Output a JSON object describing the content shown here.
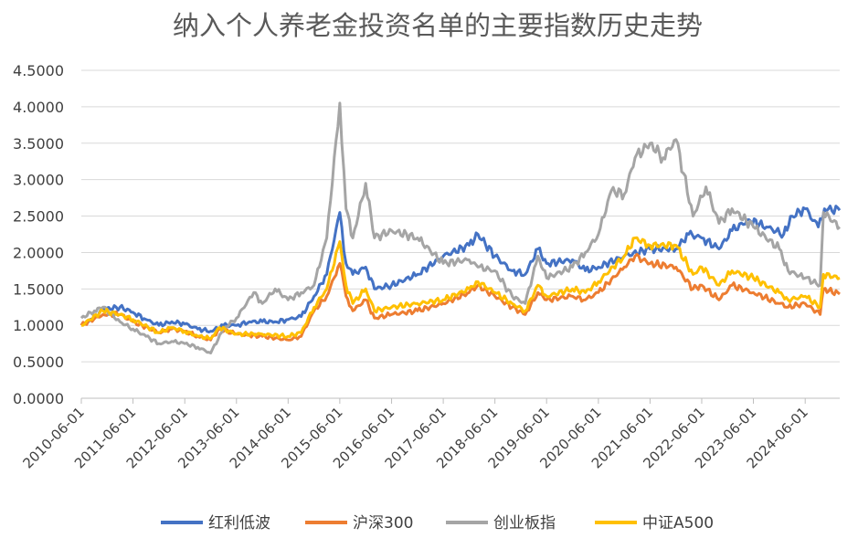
{
  "chart_data": {
    "type": "line",
    "title": "纳入个人养老金投资名单的主要指数历史走势",
    "xlabel": "",
    "ylabel": "",
    "ylim": [
      0,
      4.5
    ],
    "y_tick_labels": [
      "0.0000",
      "0.5000",
      "1.0000",
      "1.5000",
      "2.0000",
      "2.5000",
      "3.0000",
      "3.5000",
      "4.0000",
      "4.5000"
    ],
    "x_tick_labels": [
      "2010-06-01",
      "2011-06-01",
      "2012-06-01",
      "2013-06-01",
      "2014-06-01",
      "2015-06-01",
      "2016-06-01",
      "2017-06-01",
      "2018-06-01",
      "2019-06-01",
      "2020-06-01",
      "2021-06-01",
      "2022-06-01",
      "2023-06-01",
      "2024-06-01"
    ],
    "x_range": [
      "2010-06-01",
      "2025-01-31"
    ],
    "grid": "horizontal",
    "legend_position": "bottom",
    "series": [
      {
        "name": "红利低波",
        "color": "#4472C4",
        "points": [
          [
            "2010-06-01",
            1.0
          ],
          [
            "2010-09-01",
            1.1
          ],
          [
            "2010-11-01",
            1.22
          ],
          [
            "2011-03-01",
            1.25
          ],
          [
            "2011-06-01",
            1.18
          ],
          [
            "2011-09-01",
            1.08
          ],
          [
            "2011-12-01",
            1.0
          ],
          [
            "2012-03-01",
            1.05
          ],
          [
            "2012-06-01",
            1.02
          ],
          [
            "2012-09-01",
            0.95
          ],
          [
            "2012-12-01",
            0.92
          ],
          [
            "2013-03-01",
            1.0
          ],
          [
            "2013-06-01",
            1.0
          ],
          [
            "2013-09-01",
            1.05
          ],
          [
            "2013-12-01",
            1.05
          ],
          [
            "2014-03-01",
            1.05
          ],
          [
            "2014-06-01",
            1.08
          ],
          [
            "2014-09-01",
            1.12
          ],
          [
            "2014-12-01",
            1.4
          ],
          [
            "2015-03-01",
            1.7
          ],
          [
            "2015-06-01",
            2.55
          ],
          [
            "2015-07-15",
            1.85
          ],
          [
            "2015-09-01",
            1.7
          ],
          [
            "2015-12-01",
            1.8
          ],
          [
            "2016-02-01",
            1.5
          ],
          [
            "2016-06-01",
            1.55
          ],
          [
            "2016-12-01",
            1.7
          ],
          [
            "2017-06-01",
            1.95
          ],
          [
            "2017-12-01",
            2.1
          ],
          [
            "2018-02-01",
            2.25
          ],
          [
            "2018-06-01",
            1.95
          ],
          [
            "2018-10-01",
            1.75
          ],
          [
            "2019-01-01",
            1.7
          ],
          [
            "2019-04-01",
            2.05
          ],
          [
            "2019-06-01",
            1.85
          ],
          [
            "2019-12-01",
            1.9
          ],
          [
            "2020-03-01",
            1.75
          ],
          [
            "2020-06-01",
            1.8
          ],
          [
            "2020-12-01",
            1.95
          ],
          [
            "2021-06-01",
            2.05
          ],
          [
            "2021-12-01",
            2.05
          ],
          [
            "2022-03-01",
            2.25
          ],
          [
            "2022-06-01",
            2.2
          ],
          [
            "2022-10-01",
            2.05
          ],
          [
            "2023-01-01",
            2.3
          ],
          [
            "2023-05-01",
            2.45
          ],
          [
            "2023-09-01",
            2.35
          ],
          [
            "2024-01-01",
            2.25
          ],
          [
            "2024-03-01",
            2.5
          ],
          [
            "2024-06-01",
            2.6
          ],
          [
            "2024-09-01",
            2.35
          ],
          [
            "2024-10-15",
            2.6
          ],
          [
            "2025-01-31",
            2.58
          ]
        ]
      },
      {
        "name": "沪深300",
        "color": "#ED7D31",
        "points": [
          [
            "2010-06-01",
            1.0
          ],
          [
            "2010-11-01",
            1.15
          ],
          [
            "2011-03-01",
            1.15
          ],
          [
            "2011-06-01",
            1.05
          ],
          [
            "2011-12-01",
            0.9
          ],
          [
            "2012-03-01",
            0.95
          ],
          [
            "2012-06-01",
            0.92
          ],
          [
            "2012-09-01",
            0.85
          ],
          [
            "2012-12-01",
            0.8
          ],
          [
            "2013-02-01",
            0.95
          ],
          [
            "2013-06-01",
            0.88
          ],
          [
            "2013-12-01",
            0.85
          ],
          [
            "2014-06-01",
            0.8
          ],
          [
            "2014-09-01",
            0.85
          ],
          [
            "2014-12-01",
            1.2
          ],
          [
            "2015-03-01",
            1.4
          ],
          [
            "2015-06-01",
            1.85
          ],
          [
            "2015-07-15",
            1.4
          ],
          [
            "2015-09-01",
            1.2
          ],
          [
            "2015-12-01",
            1.35
          ],
          [
            "2016-02-01",
            1.1
          ],
          [
            "2016-06-01",
            1.15
          ],
          [
            "2016-12-01",
            1.2
          ],
          [
            "2017-06-01",
            1.3
          ],
          [
            "2017-12-01",
            1.45
          ],
          [
            "2018-02-01",
            1.55
          ],
          [
            "2018-06-01",
            1.4
          ],
          [
            "2018-10-01",
            1.25
          ],
          [
            "2019-01-01",
            1.15
          ],
          [
            "2019-04-01",
            1.45
          ],
          [
            "2019-06-01",
            1.35
          ],
          [
            "2019-12-01",
            1.4
          ],
          [
            "2020-03-01",
            1.35
          ],
          [
            "2020-06-01",
            1.45
          ],
          [
            "2020-12-01",
            1.8
          ],
          [
            "2021-02-15",
            1.95
          ],
          [
            "2021-06-01",
            1.85
          ],
          [
            "2021-12-01",
            1.8
          ],
          [
            "2022-04-01",
            1.5
          ],
          [
            "2022-06-01",
            1.55
          ],
          [
            "2022-10-01",
            1.35
          ],
          [
            "2023-01-01",
            1.55
          ],
          [
            "2023-06-01",
            1.45
          ],
          [
            "2023-12-01",
            1.3
          ],
          [
            "2024-02-01",
            1.25
          ],
          [
            "2024-06-01",
            1.3
          ],
          [
            "2024-09-15",
            1.15
          ],
          [
            "2024-10-08",
            1.5
          ],
          [
            "2025-01-31",
            1.43
          ]
        ]
      },
      {
        "name": "创业板指",
        "color": "#A5A5A5",
        "points": [
          [
            "2010-06-01",
            1.1
          ],
          [
            "2010-09-01",
            1.2
          ],
          [
            "2010-11-01",
            1.25
          ],
          [
            "2011-03-01",
            1.05
          ],
          [
            "2011-06-01",
            0.95
          ],
          [
            "2011-09-01",
            0.85
          ],
          [
            "2011-12-01",
            0.75
          ],
          [
            "2012-03-01",
            0.78
          ],
          [
            "2012-06-01",
            0.75
          ],
          [
            "2012-09-01",
            0.7
          ],
          [
            "2012-12-01",
            0.62
          ],
          [
            "2013-03-01",
            0.95
          ],
          [
            "2013-06-01",
            1.1
          ],
          [
            "2013-10-01",
            1.45
          ],
          [
            "2013-12-01",
            1.3
          ],
          [
            "2014-03-01",
            1.5
          ],
          [
            "2014-06-01",
            1.35
          ],
          [
            "2014-09-01",
            1.45
          ],
          [
            "2014-12-01",
            1.55
          ],
          [
            "2015-03-01",
            2.2
          ],
          [
            "2015-06-01",
            4.05
          ],
          [
            "2015-07-15",
            2.6
          ],
          [
            "2015-09-01",
            2.2
          ],
          [
            "2015-12-01",
            2.95
          ],
          [
            "2016-02-01",
            2.2
          ],
          [
            "2016-06-01",
            2.3
          ],
          [
            "2016-12-01",
            2.2
          ],
          [
            "2017-06-01",
            1.85
          ],
          [
            "2017-12-01",
            1.9
          ],
          [
            "2018-02-01",
            1.8
          ],
          [
            "2018-06-01",
            1.75
          ],
          [
            "2018-10-01",
            1.4
          ],
          [
            "2019-01-01",
            1.3
          ],
          [
            "2019-04-01",
            1.95
          ],
          [
            "2019-06-01",
            1.65
          ],
          [
            "2019-12-01",
            1.8
          ],
          [
            "2020-03-01",
            2.0
          ],
          [
            "2020-06-01",
            2.25
          ],
          [
            "2020-09-01",
            2.85
          ],
          [
            "2020-12-01",
            2.8
          ],
          [
            "2021-02-15",
            3.3
          ],
          [
            "2021-06-01",
            3.5
          ],
          [
            "2021-09-01",
            3.3
          ],
          [
            "2021-12-01",
            3.55
          ],
          [
            "2022-04-01",
            2.5
          ],
          [
            "2022-07-01",
            2.9
          ],
          [
            "2022-10-01",
            2.4
          ],
          [
            "2023-01-01",
            2.6
          ],
          [
            "2023-06-01",
            2.35
          ],
          [
            "2023-12-01",
            2.05
          ],
          [
            "2024-02-01",
            1.75
          ],
          [
            "2024-06-01",
            1.65
          ],
          [
            "2024-09-15",
            1.55
          ],
          [
            "2024-10-08",
            2.55
          ],
          [
            "2025-01-31",
            2.35
          ]
        ]
      },
      {
        "name": "中证A500",
        "color": "#FFC000",
        "points": [
          [
            "2010-06-01",
            1.0
          ],
          [
            "2010-11-01",
            1.2
          ],
          [
            "2011-03-01",
            1.15
          ],
          [
            "2011-06-01",
            1.08
          ],
          [
            "2011-12-01",
            0.9
          ],
          [
            "2012-03-01",
            0.97
          ],
          [
            "2012-06-01",
            0.92
          ],
          [
            "2012-09-01",
            0.85
          ],
          [
            "2012-12-01",
            0.82
          ],
          [
            "2013-02-01",
            0.97
          ],
          [
            "2013-06-01",
            0.88
          ],
          [
            "2013-12-01",
            0.88
          ],
          [
            "2014-06-01",
            0.85
          ],
          [
            "2014-09-01",
            0.9
          ],
          [
            "2014-12-01",
            1.25
          ],
          [
            "2015-03-01",
            1.5
          ],
          [
            "2015-06-01",
            2.15
          ],
          [
            "2015-07-15",
            1.55
          ],
          [
            "2015-09-01",
            1.3
          ],
          [
            "2015-12-01",
            1.5
          ],
          [
            "2016-02-01",
            1.2
          ],
          [
            "2016-06-01",
            1.25
          ],
          [
            "2016-12-01",
            1.3
          ],
          [
            "2017-06-01",
            1.35
          ],
          [
            "2017-12-01",
            1.5
          ],
          [
            "2018-02-01",
            1.6
          ],
          [
            "2018-06-01",
            1.45
          ],
          [
            "2018-10-01",
            1.3
          ],
          [
            "2019-01-01",
            1.2
          ],
          [
            "2019-04-01",
            1.55
          ],
          [
            "2019-06-01",
            1.4
          ],
          [
            "2019-12-01",
            1.5
          ],
          [
            "2020-03-01",
            1.45
          ],
          [
            "2020-06-01",
            1.6
          ],
          [
            "2020-12-01",
            1.95
          ],
          [
            "2021-02-15",
            2.2
          ],
          [
            "2021-06-01",
            2.1
          ],
          [
            "2021-12-01",
            2.1
          ],
          [
            "2022-04-01",
            1.7
          ],
          [
            "2022-06-01",
            1.8
          ],
          [
            "2022-10-01",
            1.55
          ],
          [
            "2023-01-01",
            1.75
          ],
          [
            "2023-06-01",
            1.65
          ],
          [
            "2023-12-01",
            1.45
          ],
          [
            "2024-02-01",
            1.35
          ],
          [
            "2024-06-01",
            1.4
          ],
          [
            "2024-09-15",
            1.25
          ],
          [
            "2024-10-08",
            1.7
          ],
          [
            "2025-01-31",
            1.65
          ]
        ]
      }
    ]
  }
}
